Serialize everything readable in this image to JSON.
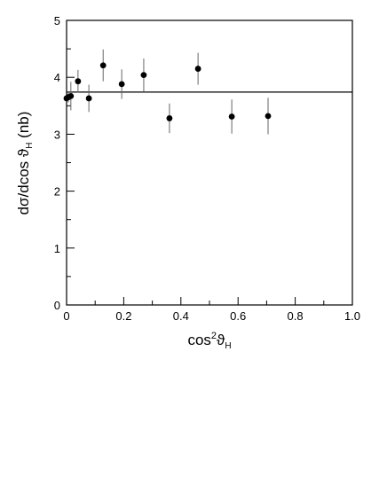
{
  "chart_data": {
    "type": "scatter",
    "xlabel_main": "cos",
    "xlabel_sup": "2",
    "xlabel_var": "ϑ",
    "xlabel_sub": "H",
    "ylabel_main": "dσ/dcos ϑ",
    "ylabel_sub": "H",
    "ylabel_unit": "(nb)",
    "xlim": [
      0,
      1.0
    ],
    "ylim": [
      0,
      5
    ],
    "x_ticks": [
      0,
      0.2,
      0.4,
      0.6,
      0.8,
      1.0
    ],
    "x_tick_labels": [
      "0",
      "0.2",
      "0.4",
      "0.6",
      "0.8",
      "1.0"
    ],
    "y_ticks": [
      0,
      1,
      2,
      3,
      4,
      5
    ],
    "y_tick_labels": [
      "0",
      "1",
      "2",
      "3",
      "4",
      "5"
    ],
    "grid": false,
    "legend": "none",
    "series": [
      {
        "points": [
          {
            "x": 0.0,
            "y": 3.63,
            "err": 0.05
          },
          {
            "x": 0.006,
            "y": 3.65,
            "err": 0.09
          },
          {
            "x": 0.015,
            "y": 3.67,
            "err": 0.25
          },
          {
            "x": 0.04,
            "y": 3.93,
            "err": 0.2
          },
          {
            "x": 0.078,
            "y": 3.63,
            "err": 0.24
          },
          {
            "x": 0.128,
            "y": 4.21,
            "err": 0.28
          },
          {
            "x": 0.193,
            "y": 3.88,
            "err": 0.26
          },
          {
            "x": 0.27,
            "y": 4.04,
            "err": 0.29
          },
          {
            "x": 0.36,
            "y": 3.28,
            "err": 0.26
          },
          {
            "x": 0.46,
            "y": 4.15,
            "err": 0.28
          },
          {
            "x": 0.578,
            "y": 3.31,
            "err": 0.3
          },
          {
            "x": 0.705,
            "y": 3.32,
            "err": 0.32
          }
        ]
      }
    ],
    "reference_line": {
      "y": 3.74
    },
    "colors": {
      "markers": "#000000",
      "error_bars": "#666666",
      "axes": "#000000",
      "fit_line": "#000000"
    }
  }
}
